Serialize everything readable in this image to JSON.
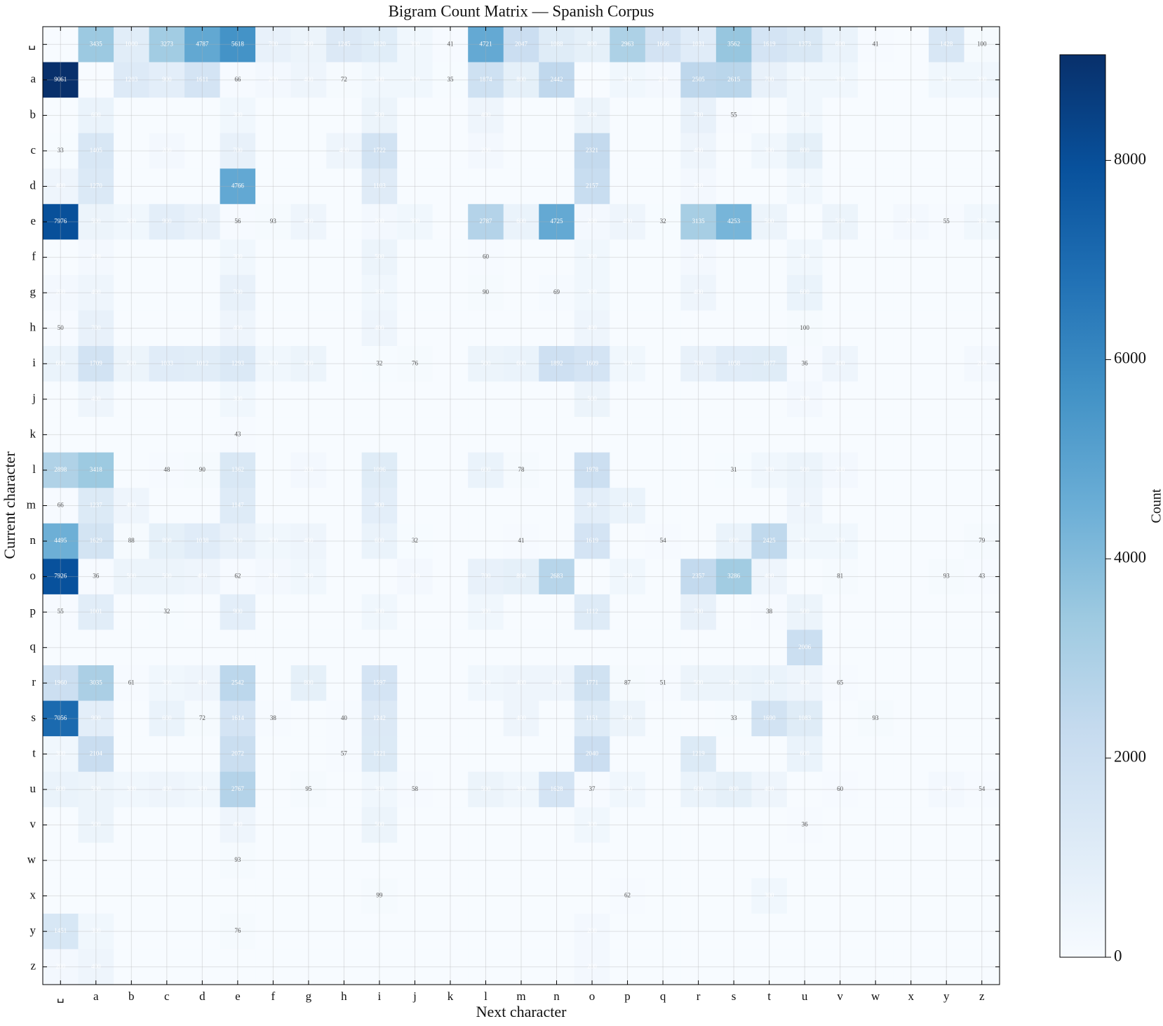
{
  "chart_data": {
    "type": "heatmap",
    "title": "Bigram Count Matrix — Spanish Corpus",
    "x_label": "Next character",
    "y_label": "Current character",
    "x_categories": [
      "␣",
      "a",
      "b",
      "c",
      "d",
      "e",
      "f",
      "g",
      "h",
      "i",
      "j",
      "k",
      "l",
      "m",
      "n",
      "o",
      "p",
      "q",
      "r",
      "s",
      "t",
      "u",
      "v",
      "w",
      "x",
      "y",
      "z"
    ],
    "y_categories": [
      "␣",
      "a",
      "b",
      "c",
      "d",
      "e",
      "f",
      "g",
      "h",
      "i",
      "j",
      "k",
      "l",
      "m",
      "n",
      "o",
      "p",
      "q",
      "r",
      "s",
      "t",
      "u",
      "v",
      "w",
      "x",
      "y",
      "z"
    ],
    "values": [
      [
        0,
        3435,
        1000,
        3273,
        4787,
        5618,
        700,
        500,
        1245,
        1020,
        300,
        41,
        4721,
        2047,
        1088,
        800,
        2963,
        1666,
        1031,
        3562,
        1619,
        1373,
        600,
        41,
        0,
        1428,
        100
      ],
      [
        9061,
        0,
        1203,
        900,
        1611,
        66,
        200,
        400,
        72,
        300,
        300,
        35,
        1874,
        800,
        2442,
        0,
        300,
        200,
        2505,
        2615,
        700,
        300,
        300,
        0,
        0,
        300,
        300
      ],
      [
        0,
        600,
        0,
        0,
        0,
        300,
        0,
        0,
        0,
        500,
        0,
        0,
        400,
        0,
        0,
        500,
        0,
        0,
        700,
        55,
        0,
        300,
        0,
        0,
        0,
        0,
        0
      ],
      [
        33,
        1405,
        0,
        200,
        0,
        700,
        0,
        0,
        400,
        1722,
        0,
        0,
        200,
        0,
        0,
        2321,
        0,
        0,
        400,
        0,
        300,
        800,
        0,
        0,
        0,
        0,
        0
      ],
      [
        400,
        1270,
        0,
        0,
        0,
        4766,
        0,
        0,
        0,
        1103,
        0,
        0,
        0,
        0,
        0,
        2157,
        0,
        0,
        200,
        0,
        0,
        300,
        0,
        0,
        0,
        0,
        0
      ],
      [
        7976,
        500,
        300,
        900,
        700,
        56,
        93,
        400,
        0,
        200,
        300,
        0,
        2787,
        600,
        4725,
        200,
        400,
        32,
        3135,
        4253,
        500,
        0,
        500,
        0,
        200,
        55,
        300
      ],
      [
        0,
        200,
        0,
        0,
        0,
        300,
        0,
        0,
        0,
        500,
        0,
        0,
        60,
        0,
        0,
        300,
        0,
        0,
        200,
        0,
        0,
        300,
        0,
        0,
        0,
        0,
        0
      ],
      [
        200,
        400,
        0,
        0,
        0,
        700,
        0,
        0,
        0,
        300,
        0,
        0,
        90,
        0,
        69,
        300,
        0,
        0,
        400,
        0,
        0,
        600,
        0,
        0,
        0,
        0,
        0
      ],
      [
        50,
        700,
        0,
        0,
        0,
        400,
        0,
        0,
        0,
        400,
        0,
        0,
        0,
        0,
        0,
        400,
        0,
        0,
        0,
        0,
        0,
        100,
        0,
        0,
        0,
        0,
        0
      ],
      [
        600,
        1709,
        500,
        1033,
        1012,
        1293,
        300,
        500,
        0,
        32,
        76,
        0,
        500,
        600,
        1892,
        1609,
        300,
        0,
        700,
        1058,
        1077,
        36,
        400,
        0,
        0,
        0,
        200
      ],
      [
        0,
        400,
        0,
        0,
        0,
        300,
        0,
        0,
        0,
        0,
        0,
        0,
        0,
        0,
        0,
        500,
        0,
        0,
        0,
        0,
        0,
        200,
        0,
        0,
        0,
        0,
        0
      ],
      [
        0,
        0,
        0,
        0,
        0,
        43,
        0,
        0,
        0,
        0,
        0,
        0,
        0,
        0,
        0,
        0,
        0,
        0,
        0,
        0,
        0,
        0,
        0,
        0,
        0,
        0,
        0
      ],
      [
        2898,
        3418,
        0,
        48,
        90,
        1362,
        0,
        200,
        0,
        1096,
        0,
        0,
        600,
        78,
        0,
        1978,
        0,
        0,
        0,
        31,
        300,
        500,
        200,
        0,
        0,
        0,
        0
      ],
      [
        66,
        1237,
        400,
        0,
        0,
        1147,
        0,
        0,
        0,
        900,
        0,
        0,
        0,
        0,
        0,
        900,
        600,
        0,
        0,
        0,
        0,
        400,
        0,
        0,
        0,
        0,
        0
      ],
      [
        4495,
        1629,
        88,
        800,
        1038,
        700,
        300,
        400,
        0,
        600,
        32,
        0,
        0,
        41,
        0,
        1619,
        0,
        54,
        0,
        600,
        2425,
        300,
        300,
        0,
        0,
        0,
        79
      ],
      [
        7926,
        36,
        500,
        500,
        400,
        62,
        200,
        300,
        0,
        0,
        200,
        0,
        700,
        800,
        2683,
        0,
        300,
        0,
        2357,
        3286,
        400,
        0,
        81,
        0,
        0,
        93,
        43
      ],
      [
        55,
        1001,
        0,
        32,
        0,
        900,
        0,
        0,
        0,
        300,
        0,
        0,
        300,
        0,
        0,
        1112,
        0,
        0,
        700,
        0,
        38,
        500,
        0,
        0,
        0,
        0,
        0
      ],
      [
        0,
        0,
        0,
        0,
        0,
        0,
        0,
        0,
        0,
        0,
        0,
        0,
        0,
        0,
        0,
        0,
        0,
        0,
        0,
        0,
        0,
        2006,
        0,
        0,
        0,
        0,
        0
      ],
      [
        1960,
        3035,
        61,
        300,
        400,
        2542,
        0,
        800,
        0,
        1597,
        0,
        0,
        300,
        400,
        400,
        1771,
        87,
        51,
        500,
        500,
        600,
        400,
        65,
        0,
        0,
        0,
        0
      ],
      [
        7056,
        900,
        0,
        600,
        72,
        1614,
        38,
        0,
        40,
        1242,
        0,
        0,
        0,
        400,
        0,
        1151,
        500,
        0,
        0,
        33,
        1690,
        1083,
        0,
        93,
        0,
        0,
        0
      ],
      [
        300,
        2104,
        0,
        0,
        0,
        2072,
        0,
        0,
        57,
        1221,
        0,
        0,
        0,
        0,
        0,
        2040,
        0,
        0,
        1219,
        0,
        0,
        600,
        0,
        0,
        0,
        0,
        0
      ],
      [
        600,
        500,
        300,
        400,
        300,
        2767,
        0,
        95,
        0,
        300,
        58,
        0,
        500,
        300,
        1628,
        37,
        300,
        0,
        600,
        800,
        400,
        0,
        60,
        0,
        0,
        200,
        54
      ],
      [
        0,
        500,
        0,
        0,
        0,
        400,
        0,
        0,
        0,
        500,
        0,
        0,
        0,
        0,
        0,
        300,
        0,
        0,
        0,
        0,
        0,
        36,
        0,
        0,
        0,
        0,
        0
      ],
      [
        0,
        0,
        0,
        0,
        0,
        93,
        0,
        0,
        0,
        0,
        0,
        0,
        0,
        0,
        0,
        0,
        0,
        0,
        0,
        0,
        0,
        0,
        0,
        0,
        0,
        0,
        0
      ],
      [
        0,
        0,
        0,
        0,
        0,
        0,
        0,
        0,
        0,
        99,
        0,
        0,
        0,
        0,
        0,
        0,
        62,
        0,
        0,
        0,
        300,
        0,
        0,
        0,
        0,
        0,
        0
      ],
      [
        1451,
        300,
        0,
        0,
        0,
        76,
        0,
        0,
        0,
        0,
        0,
        0,
        0,
        0,
        0,
        200,
        0,
        0,
        0,
        0,
        0,
        0,
        0,
        0,
        0,
        0,
        0
      ],
      [
        200,
        400,
        0,
        0,
        0,
        0,
        0,
        0,
        0,
        0,
        0,
        0,
        0,
        0,
        0,
        200,
        0,
        0,
        0,
        0,
        0,
        0,
        0,
        0,
        0,
        0,
        0
      ]
    ],
    "colormap": [
      "#f7fbff",
      "#deebf7",
      "#c6dbef",
      "#9ecae1",
      "#6baed6",
      "#4292c6",
      "#2171b5",
      "#08519c",
      "#08306b"
    ],
    "clim": [
      0,
      9061
    ],
    "colorbar_ticks": [
      0,
      2000,
      4000,
      6000,
      8000
    ],
    "colorbar_label": "Count",
    "grid": true
  }
}
